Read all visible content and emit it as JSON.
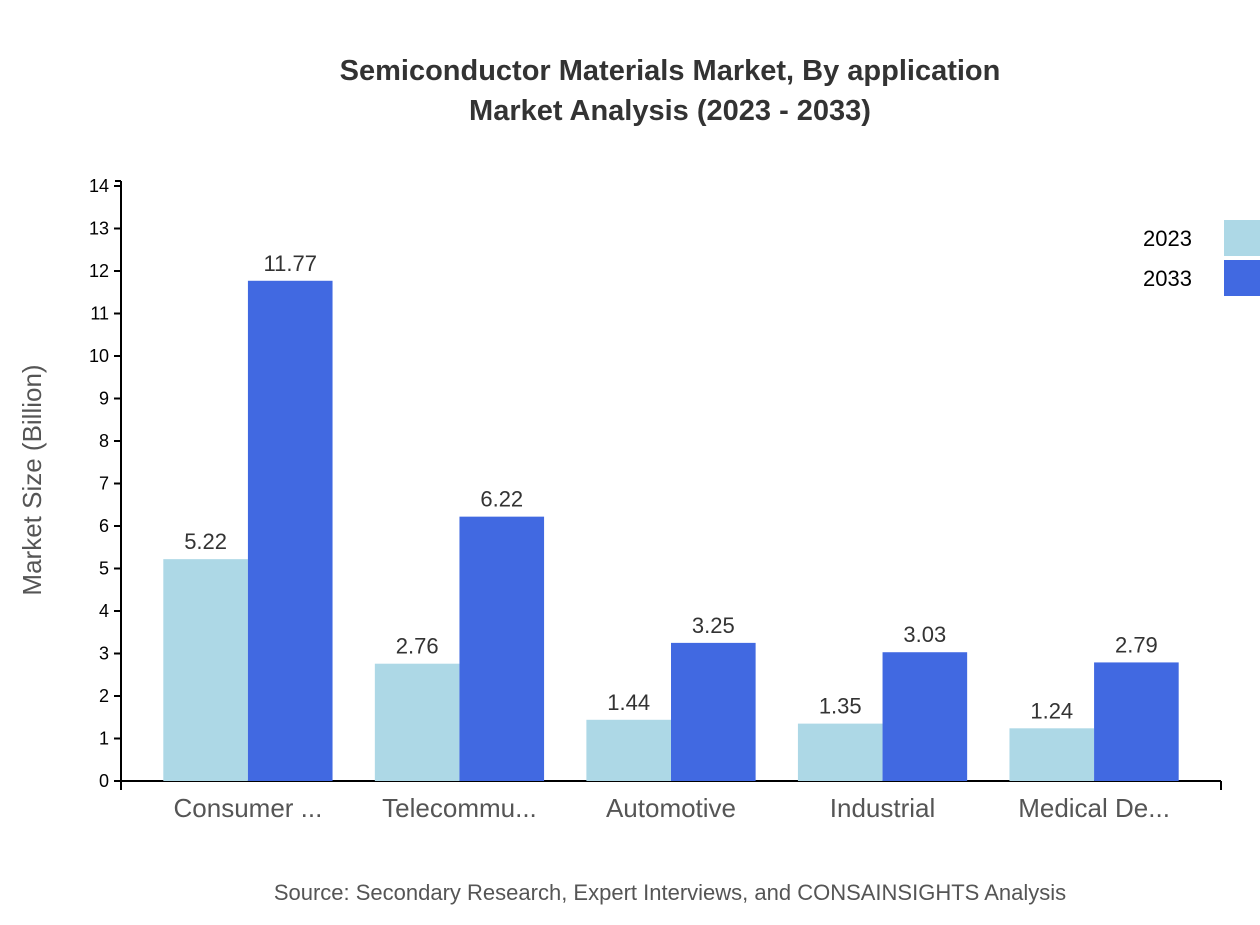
{
  "chart_data": {
    "type": "bar",
    "title": "Semiconductor Materials Market, By application",
    "subtitle": "Market Analysis (2023 - 2033)",
    "ylabel": "Market Size (Billion)",
    "xlabel": "",
    "categories": [
      "Consumer ...",
      "Telecommu...",
      "Automotive",
      "Industrial",
      "Medical De..."
    ],
    "series": [
      {
        "name": "2023",
        "color": "#add8e6",
        "values": [
          5.22,
          2.76,
          1.44,
          1.35,
          1.24
        ]
      },
      {
        "name": "2033",
        "color": "#4169e1",
        "values": [
          11.77,
          6.22,
          3.25,
          3.03,
          2.79
        ]
      }
    ],
    "ylim": [
      0,
      14
    ],
    "yticks": [
      0,
      1,
      2,
      3,
      4,
      5,
      6,
      7,
      8,
      9,
      10,
      11,
      12,
      13,
      14
    ],
    "grid": false,
    "legend": "top-right",
    "source": "Source: Secondary Research, Expert Interviews, and CONSAINSIGHTS Analysis"
  }
}
